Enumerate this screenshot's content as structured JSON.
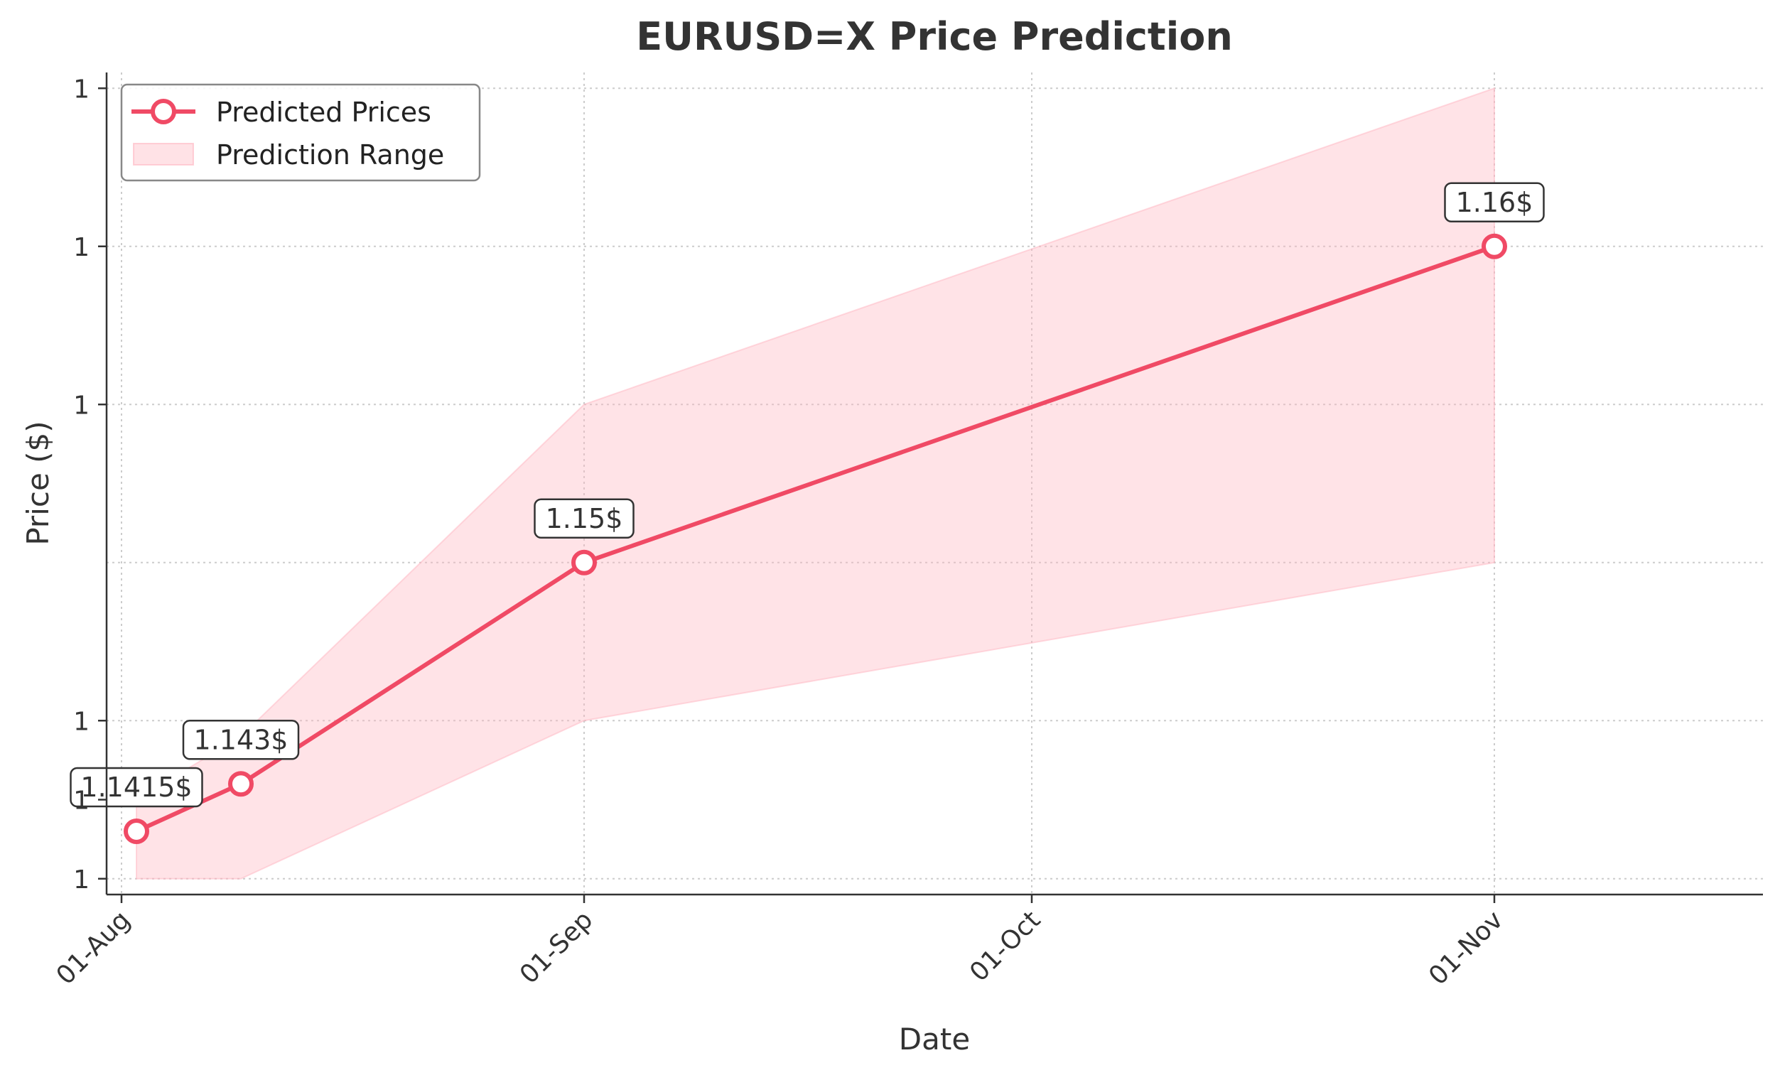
{
  "chart_data": {
    "type": "line",
    "title": "EURUSD=X Price Prediction",
    "xlabel": "Date",
    "ylabel": "Price ($)",
    "x_tick_labels": [
      "01-Aug",
      "01-Sep",
      "01-Oct",
      "01-Nov"
    ],
    "y_tick_labels": [
      "1",
      "1",
      "1",
      "1",
      "1",
      "1"
    ],
    "ylim": [
      1.1395,
      1.1655
    ],
    "grid": true,
    "legend_position": "top-left",
    "series": [
      {
        "name": "Predicted Prices",
        "kind": "line-markers",
        "color": "#F04A65",
        "x": [
          "2025-08-02",
          "2025-08-09",
          "2025-09-01",
          "2025-11-01"
        ],
        "y": [
          1.1415,
          1.143,
          1.15,
          1.16
        ]
      },
      {
        "name": "Prediction Range",
        "kind": "band",
        "color": "#FFB6C1",
        "x": [
          "2025-08-02",
          "2025-08-09",
          "2025-09-01",
          "2025-11-01"
        ],
        "lower": [
          1.14,
          1.14,
          1.145,
          1.15
        ],
        "upper": [
          1.1425,
          1.1445,
          1.155,
          1.165
        ]
      }
    ],
    "annotations": [
      {
        "text": "1.1415$",
        "x": "2025-08-02",
        "y": 1.1415
      },
      {
        "text": "1.143$",
        "x": "2025-08-09",
        "y": 1.143
      },
      {
        "text": "1.15$",
        "x": "2025-09-01",
        "y": 1.15
      },
      {
        "text": "1.16$",
        "x": "2025-11-01",
        "y": 1.16
      }
    ]
  }
}
